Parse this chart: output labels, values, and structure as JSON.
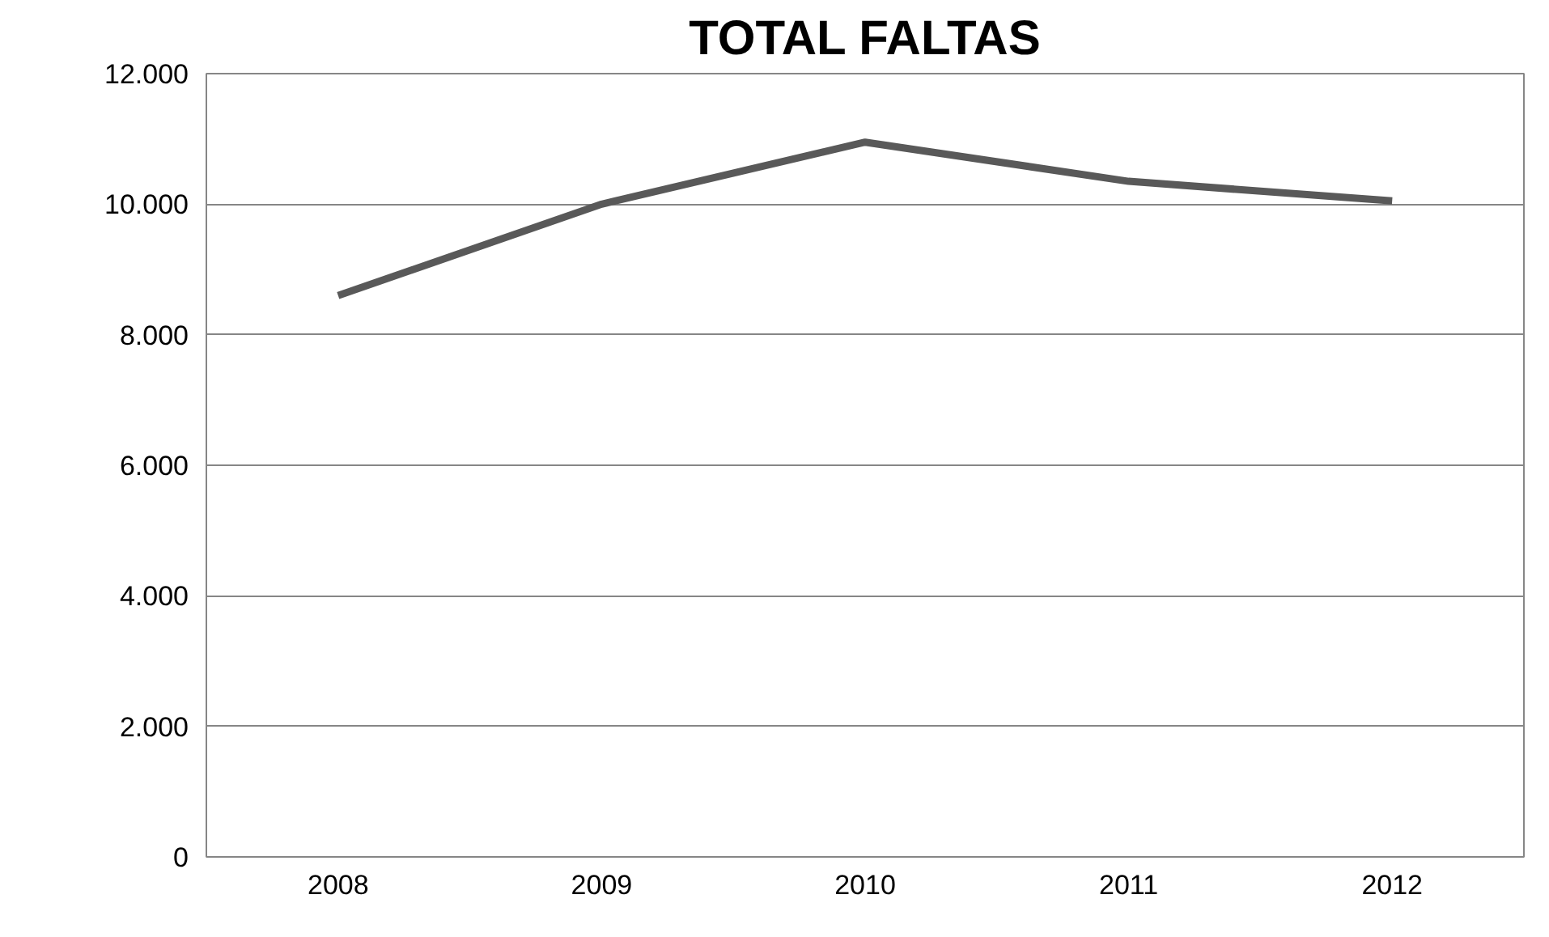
{
  "chart_data": {
    "type": "line",
    "title": "TOTAL FALTAS",
    "categories": [
      "2008",
      "2009",
      "2010",
      "2011",
      "2012"
    ],
    "series": [
      {
        "color": "#595959",
        "values": [
          8600,
          10000,
          10950,
          10350,
          10050
        ]
      }
    ],
    "ylim": [
      0,
      12000
    ],
    "yticks": [
      {
        "value": 0,
        "label": "0"
      },
      {
        "value": 2000,
        "label": "2.000"
      },
      {
        "value": 4000,
        "label": "4.000"
      },
      {
        "value": 6000,
        "label": "6.000"
      },
      {
        "value": 8000,
        "label": "8.000"
      },
      {
        "value": 10000,
        "label": "10.000"
      },
      {
        "value": 12000,
        "label": "12.000"
      }
    ],
    "grid": "y",
    "marker": "none",
    "line_style": "solid"
  }
}
